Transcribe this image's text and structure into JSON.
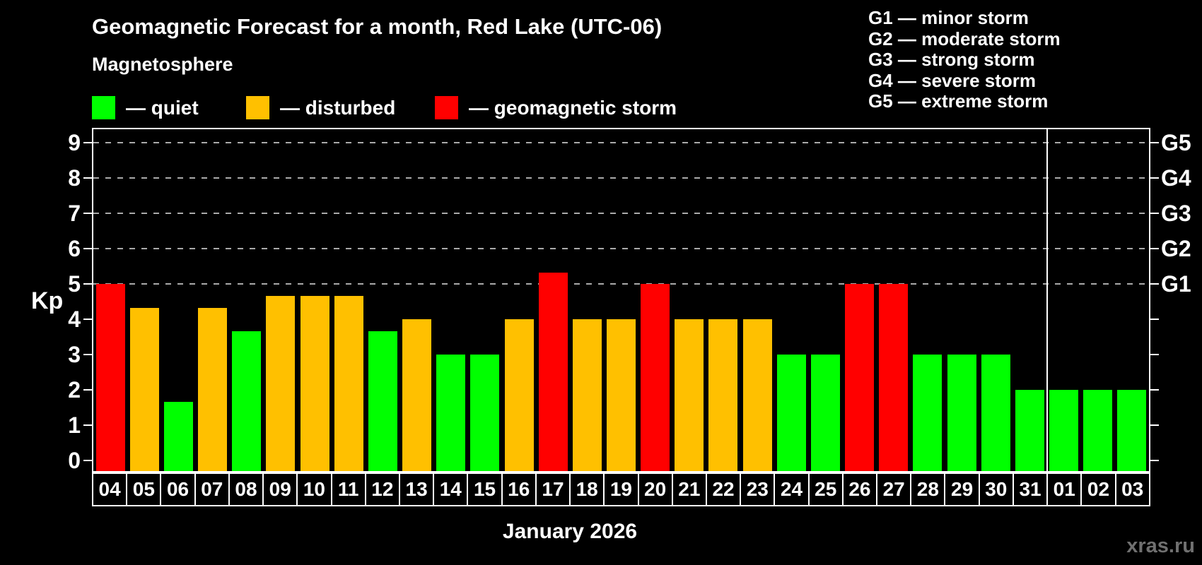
{
  "title": "Geomagnetic Forecast for a month, Red Lake (UTC-06)",
  "legend": {
    "heading": "Magnetosphere",
    "items": [
      {
        "name": "quiet",
        "label": "— quiet",
        "color": "#00ff00"
      },
      {
        "name": "disturbed",
        "label": "— disturbed",
        "color": "#ffc000"
      },
      {
        "name": "storm",
        "label": "— geomagnetic storm",
        "color": "#ff0000"
      }
    ]
  },
  "storm_scale_legend": [
    "G1 — minor storm",
    "G2 — moderate storm",
    "G3 — strong storm",
    "G4 — severe storm",
    "G5 — extreme storm"
  ],
  "watermark": "xras.ru",
  "chart_data": {
    "type": "bar",
    "title": "Geomagnetic Forecast for a month, Red Lake (UTC-06)",
    "ylabel": "Kp",
    "xlabel": "January 2026",
    "ylim": [
      0,
      9
    ],
    "y_ticks": [
      0,
      1,
      2,
      3,
      4,
      5,
      6,
      7,
      8,
      9
    ],
    "gridlines_kp": [
      5,
      6,
      7,
      8,
      9
    ],
    "grid_style": "dashed",
    "legend_position": "top-left",
    "right_axis_labels": [
      {
        "kp": 5,
        "label": "G1"
      },
      {
        "kp": 6,
        "label": "G2"
      },
      {
        "kp": 7,
        "label": "G3"
      },
      {
        "kp": 8,
        "label": "G4"
      },
      {
        "kp": 9,
        "label": "G5"
      }
    ],
    "colors": {
      "quiet": "#00ff00",
      "disturbed": "#ffc000",
      "storm": "#ff0000"
    },
    "color_rules": {
      "storm_min_kp": 5,
      "disturbed_min_kp": 4
    },
    "month_divider_before_category": "01",
    "categories": [
      "04",
      "05",
      "06",
      "07",
      "08",
      "09",
      "10",
      "11",
      "12",
      "13",
      "14",
      "15",
      "16",
      "17",
      "18",
      "19",
      "20",
      "21",
      "22",
      "23",
      "24",
      "25",
      "26",
      "27",
      "28",
      "29",
      "30",
      "31",
      "01",
      "02",
      "03"
    ],
    "values": [
      5.0,
      4.33,
      1.67,
      4.33,
      3.67,
      4.67,
      4.67,
      4.67,
      3.67,
      4.0,
      3.0,
      3.0,
      4.0,
      5.33,
      4.0,
      4.0,
      5.0,
      4.0,
      4.0,
      4.0,
      3.0,
      3.0,
      5.0,
      5.0,
      3.0,
      3.0,
      3.0,
      2.0,
      2.0,
      2.0,
      2.0
    ]
  }
}
